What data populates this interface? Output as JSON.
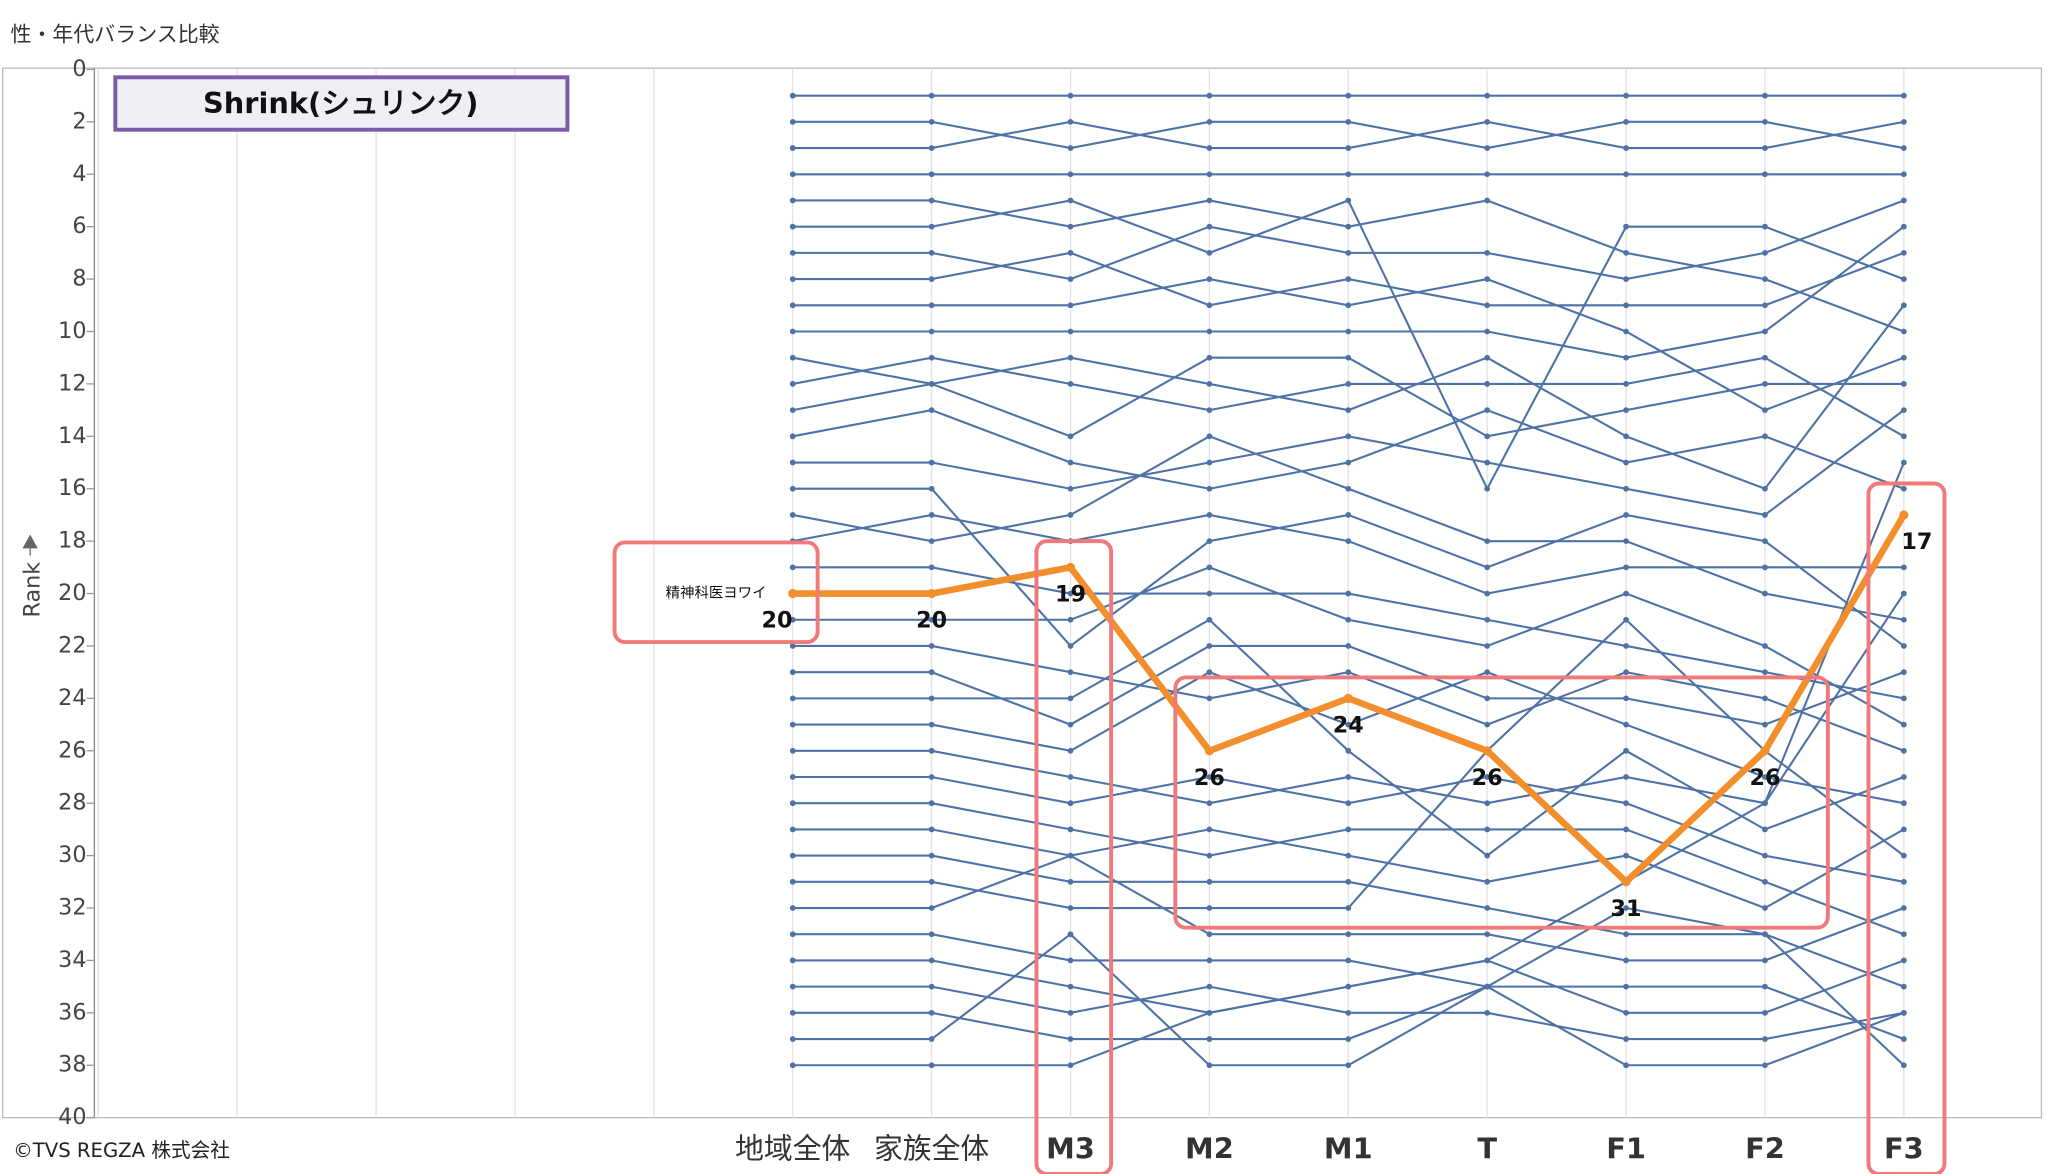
{
  "chart_data": {
    "type": "bump",
    "title": "性・年代バランス比較",
    "annotation": "Shrink(シュリンク)",
    "source": "©TVS REGZA 株式会社",
    "y_label": "Rank",
    "reversed": true,
    "ylim": [
      0,
      40
    ],
    "yticks": [
      0,
      2,
      4,
      6,
      8,
      10,
      12,
      14,
      16,
      18,
      20,
      22,
      24,
      26,
      28,
      30,
      32,
      34,
      36,
      38,
      40
    ],
    "grid": true,
    "categories": [
      null,
      null,
      null,
      null,
      null,
      "地域全体",
      "家族全体",
      "M3",
      "M2",
      "M1",
      "T",
      "F1",
      "F2",
      "F3"
    ],
    "highlight": {
      "name": "精神科医ヨワイ",
      "color": "#f28e2b",
      "values": [
        null,
        null,
        null,
        null,
        null,
        20,
        20,
        19,
        26,
        24,
        26,
        31,
        26,
        17
      ]
    },
    "series": [
      {
        "color": "#4e72a6",
        "values": [
          null,
          null,
          null,
          null,
          null,
          1,
          1,
          1,
          1,
          1,
          1,
          1,
          1,
          1
        ]
      },
      {
        "color": "#4e72a6",
        "values": [
          null,
          null,
          null,
          null,
          null,
          2,
          2,
          3,
          2,
          2,
          3,
          2,
          2,
          3
        ]
      },
      {
        "color": "#4e72a6",
        "values": [
          null,
          null,
          null,
          null,
          null,
          3,
          3,
          2,
          3,
          3,
          2,
          3,
          3,
          2
        ]
      },
      {
        "color": "#4e72a6",
        "values": [
          null,
          null,
          null,
          null,
          null,
          4,
          4,
          4,
          4,
          4,
          4,
          4,
          4,
          4
        ]
      },
      {
        "color": "#4e72a6",
        "values": [
          null,
          null,
          null,
          null,
          null,
          5,
          5,
          6,
          5,
          6,
          5,
          7,
          8,
          10
        ]
      },
      {
        "color": "#4e72a6",
        "values": [
          null,
          null,
          null,
          null,
          null,
          6,
          6,
          5,
          7,
          5,
          16,
          6,
          6,
          8
        ]
      },
      {
        "color": "#4e72a6",
        "values": [
          null,
          null,
          null,
          null,
          null,
          7,
          7,
          8,
          6,
          7,
          7,
          8,
          7,
          5
        ]
      },
      {
        "color": "#4e72a6",
        "values": [
          null,
          null,
          null,
          null,
          null,
          8,
          8,
          7,
          9,
          8,
          9,
          9,
          9,
          7
        ]
      },
      {
        "color": "#4e72a6",
        "values": [
          null,
          null,
          null,
          null,
          null,
          9,
          9,
          9,
          8,
          9,
          8,
          10,
          13,
          11
        ]
      },
      {
        "color": "#4e72a6",
        "values": [
          null,
          null,
          null,
          null,
          null,
          10,
          10,
          10,
          10,
          10,
          10,
          11,
          10,
          6
        ]
      },
      {
        "color": "#4e72a6",
        "values": [
          null,
          null,
          null,
          null,
          null,
          11,
          12,
          11,
          12,
          13,
          11,
          14,
          16,
          9
        ]
      },
      {
        "color": "#4e72a6",
        "values": [
          null,
          null,
          null,
          null,
          null,
          12,
          11,
          12,
          13,
          12,
          12,
          12,
          11,
          14
        ]
      },
      {
        "color": "#4e72a6",
        "values": [
          null,
          null,
          null,
          null,
          null,
          13,
          12,
          14,
          11,
          11,
          14,
          13,
          12,
          12
        ]
      },
      {
        "color": "#4e72a6",
        "values": [
          null,
          null,
          null,
          null,
          null,
          14,
          13,
          15,
          16,
          15,
          13,
          15,
          14,
          16
        ]
      },
      {
        "color": "#4e72a6",
        "values": [
          null,
          null,
          null,
          null,
          null,
          15,
          15,
          16,
          15,
          14,
          15,
          16,
          17,
          13
        ]
      },
      {
        "color": "#4e72a6",
        "values": [
          null,
          null,
          null,
          null,
          null,
          16,
          16,
          22,
          18,
          17,
          19,
          17,
          18,
          22
        ]
      },
      {
        "color": "#4e72a6",
        "values": [
          null,
          null,
          null,
          null,
          null,
          17,
          18,
          17,
          14,
          16,
          18,
          18,
          20,
          21
        ]
      },
      {
        "color": "#4e72a6",
        "values": [
          null,
          null,
          null,
          null,
          null,
          18,
          17,
          18,
          17,
          18,
          20,
          19,
          19,
          19
        ]
      },
      {
        "color": "#4e72a6",
        "values": [
          null,
          null,
          null,
          null,
          null,
          19,
          19,
          20,
          20,
          20,
          21,
          22,
          23,
          24
        ]
      },
      {
        "color": "#4e72a6",
        "values": [
          null,
          null,
          null,
          null,
          null,
          21,
          21,
          21,
          19,
          21,
          22,
          20,
          22,
          25
        ]
      },
      {
        "color": "#4e72a6",
        "values": [
          null,
          null,
          null,
          null,
          null,
          22,
          22,
          23,
          24,
          23,
          25,
          23,
          24,
          26
        ]
      },
      {
        "color": "#4e72a6",
        "values": [
          null,
          null,
          null,
          null,
          null,
          23,
          23,
          25,
          22,
          22,
          24,
          24,
          25,
          23
        ]
      },
      {
        "color": "#4e72a6",
        "values": [
          null,
          null,
          null,
          null,
          null,
          24,
          24,
          24,
          21,
          26,
          30,
          26,
          29,
          27
        ]
      },
      {
        "color": "#4e72a6",
        "values": [
          null,
          null,
          null,
          null,
          null,
          25,
          25,
          26,
          23,
          25,
          23,
          25,
          27,
          28
        ]
      },
      {
        "color": "#4e72a6",
        "values": [
          null,
          null,
          null,
          null,
          null,
          26,
          26,
          27,
          28,
          27,
          28,
          27,
          28,
          20
        ]
      },
      {
        "color": "#4e72a6",
        "values": [
          null,
          null,
          null,
          null,
          null,
          27,
          27,
          28,
          27,
          28,
          27,
          28,
          30,
          31
        ]
      },
      {
        "color": "#4e72a6",
        "values": [
          null,
          null,
          null,
          null,
          null,
          28,
          28,
          29,
          30,
          29,
          29,
          29,
          31,
          33
        ]
      },
      {
        "color": "#4e72a6",
        "values": [
          null,
          null,
          null,
          null,
          null,
          29,
          29,
          30,
          29,
          30,
          31,
          30,
          32,
          29
        ]
      },
      {
        "color": "#4e72a6",
        "values": [
          null,
          null,
          null,
          null,
          null,
          30,
          30,
          31,
          31,
          31,
          32,
          33,
          33,
          35
        ]
      },
      {
        "color": "#4e72a6",
        "values": [
          null,
          null,
          null,
          null,
          null,
          31,
          31,
          32,
          32,
          32,
          26,
          21,
          26,
          30
        ]
      },
      {
        "color": "#4e72a6",
        "values": [
          null,
          null,
          null,
          null,
          null,
          32,
          32,
          30,
          33,
          33,
          33,
          34,
          34,
          32
        ]
      },
      {
        "color": "#4e72a6",
        "values": [
          null,
          null,
          null,
          null,
          null,
          33,
          33,
          34,
          34,
          34,
          35,
          35,
          35,
          37
        ]
      },
      {
        "color": "#4e72a6",
        "values": [
          null,
          null,
          null,
          null,
          null,
          34,
          34,
          35,
          36,
          35,
          34,
          36,
          36,
          34
        ]
      },
      {
        "color": "#4e72a6",
        "values": [
          null,
          null,
          null,
          null,
          null,
          35,
          35,
          36,
          35,
          36,
          36,
          37,
          37,
          36
        ]
      },
      {
        "color": "#4e72a6",
        "values": [
          null,
          null,
          null,
          null,
          null,
          36,
          36,
          37,
          37,
          37,
          35,
          32,
          33,
          38
        ]
      },
      {
        "color": "#4e72a6",
        "values": [
          null,
          null,
          null,
          null,
          null,
          37,
          37,
          33,
          38,
          38,
          35,
          38,
          38,
          36
        ]
      },
      {
        "color": "#4e72a6",
        "values": [
          null,
          null,
          null,
          null,
          null,
          38,
          38,
          38,
          36,
          35,
          34,
          31,
          28,
          15
        ]
      }
    ]
  }
}
